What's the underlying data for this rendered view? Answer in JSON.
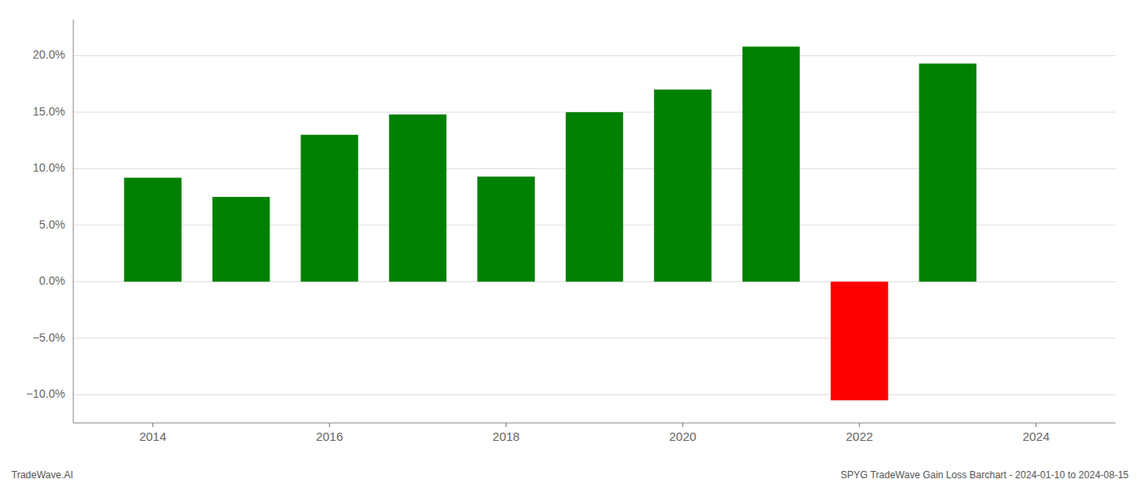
{
  "chart_data": {
    "type": "bar",
    "x": [
      2014,
      2015,
      2016,
      2017,
      2018,
      2019,
      2020,
      2021,
      2022,
      2023
    ],
    "values": [
      0.092,
      0.075,
      0.13,
      0.148,
      0.093,
      0.15,
      0.17,
      0.208,
      -0.105,
      0.193
    ],
    "colors": [
      "#008000",
      "#008000",
      "#008000",
      "#008000",
      "#008000",
      "#008000",
      "#008000",
      "#008000",
      "#ff0000",
      "#008000"
    ],
    "xlim": [
      2013.1,
      2024.9
    ],
    "xticks": [
      2014,
      2016,
      2018,
      2020,
      2022,
      2024
    ],
    "ylim": [
      -0.125,
      0.232
    ],
    "yticks": [
      {
        "value": -0.1,
        "label": "−10.0%"
      },
      {
        "value": -0.05,
        "label": "−5.0%"
      },
      {
        "value": 0.0,
        "label": "0.0%"
      },
      {
        "value": 0.05,
        "label": "5.0%"
      },
      {
        "value": 0.1,
        "label": "10.0%"
      },
      {
        "value": 0.15,
        "label": "15.0%"
      },
      {
        "value": 0.2,
        "label": "20.0%"
      }
    ],
    "grid": true,
    "annotations": [
      "TradeWave.AI",
      "SPYG TradeWave Gain Loss Barchart - 2024-01-10 to 2024-08-15"
    ]
  }
}
